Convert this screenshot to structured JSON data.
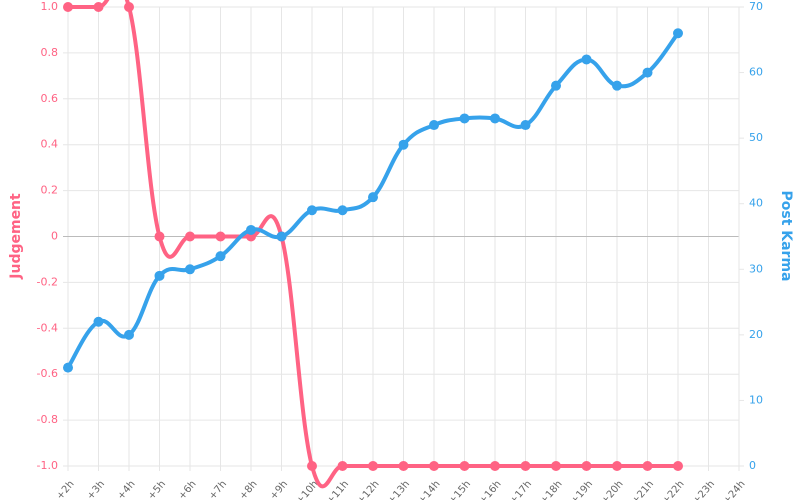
{
  "chart_data": {
    "type": "line",
    "categories": [
      "+2h",
      "+3h",
      "+4h",
      "+5h",
      "+6h",
      "+7h",
      "+8h",
      "+9h",
      "+10h",
      "+11h",
      "+12h",
      "+13h",
      "+14h",
      "+15h",
      "+16h",
      "+17h",
      "+18h",
      "+19h",
      "+20h",
      "+21h",
      "+22h",
      "+23h",
      "+24h"
    ],
    "series": [
      {
        "name": "Judgement",
        "color": "#ff6384",
        "axis": "y",
        "values": [
          1,
          1,
          1,
          0,
          0,
          0,
          0,
          0,
          -1,
          -1,
          -1,
          -1,
          -1,
          -1,
          -1,
          -1,
          -1,
          -1,
          -1,
          -1,
          -1,
          null,
          null
        ]
      },
      {
        "name": "Post Karma",
        "color": "#36a2eb",
        "axis": "y2",
        "values": [
          15,
          22,
          20,
          29,
          30,
          32,
          36,
          35,
          39,
          39,
          41,
          49,
          52,
          53,
          53,
          52,
          58,
          62,
          58,
          60,
          66,
          null,
          null
        ]
      }
    ],
    "ylabel": "Judgement",
    "y2label": "Post Karma",
    "ylim": [
      -1,
      1
    ],
    "yticks": [
      {
        "value": -1,
        "label": "-1.0"
      },
      -0.8,
      -0.6,
      -0.4,
      -0.2,
      0,
      0.2,
      0.4,
      0.6,
      0.8,
      {
        "value": 1,
        "label": "1.0"
      }
    ],
    "y2lim": [
      0,
      70
    ],
    "y2ticks": [
      0,
      10,
      20,
      30,
      40,
      50,
      60,
      70
    ],
    "grid": true
  }
}
